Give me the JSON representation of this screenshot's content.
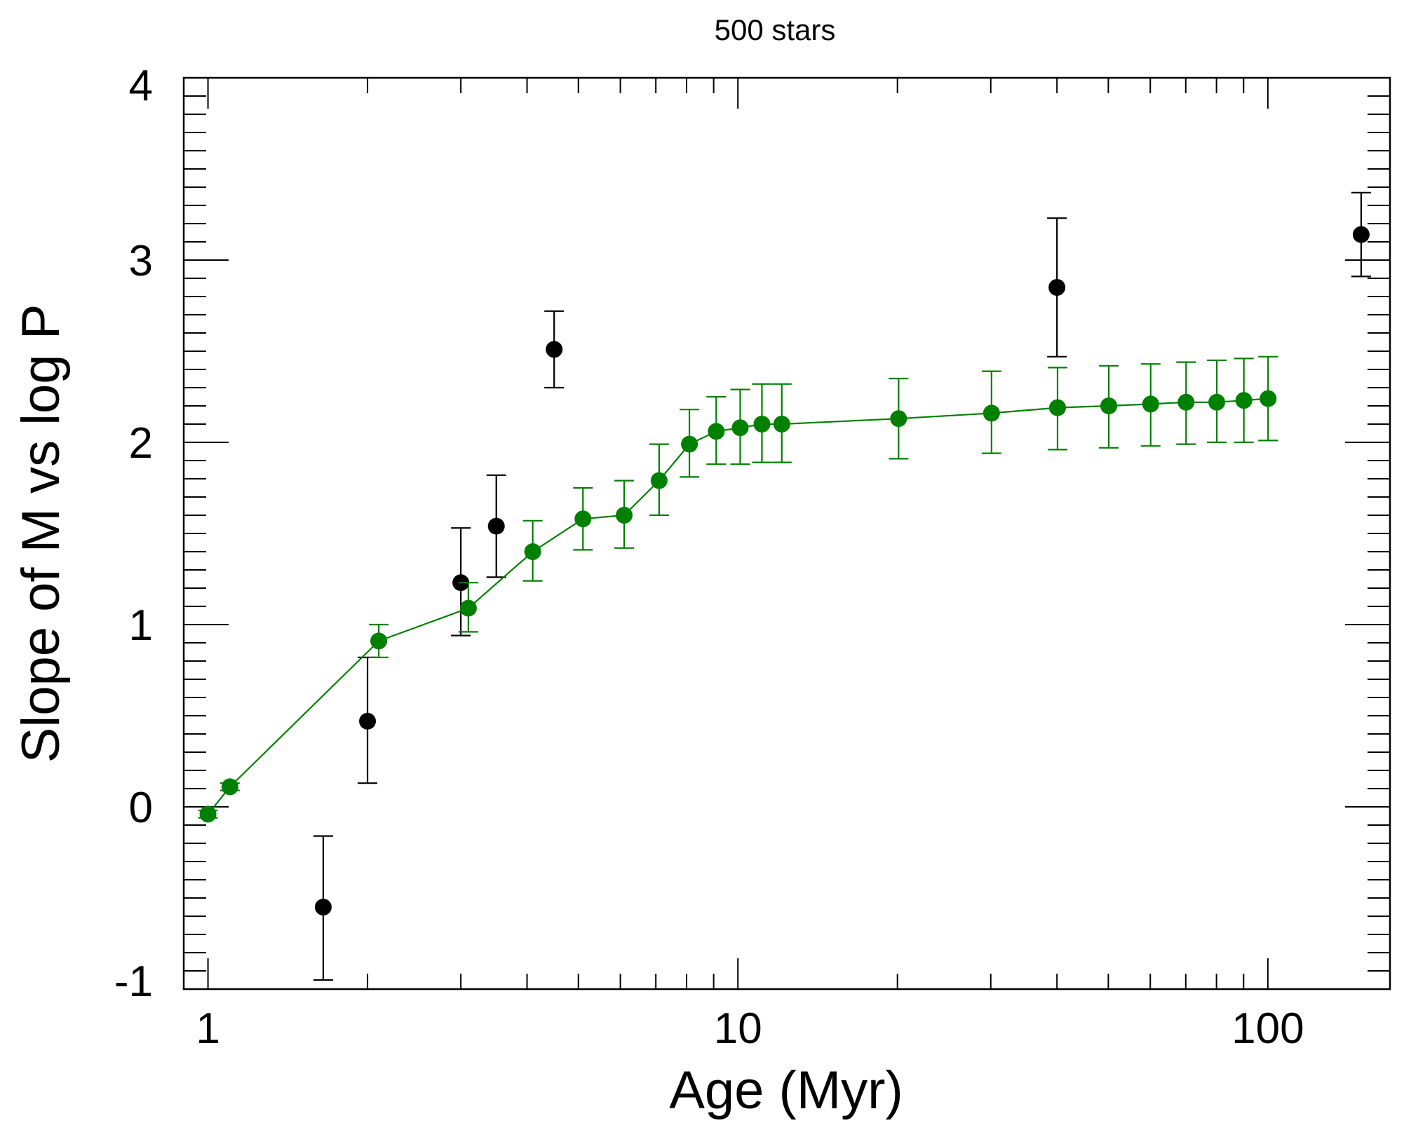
{
  "chart_data": {
    "type": "scatter",
    "title": "500 stars",
    "xlabel": "Age (Myr)",
    "ylabel": "Slope of M vs log P",
    "xscale": "log",
    "xlim": [
      0.9,
      170
    ],
    "ylim": [
      -1,
      4
    ],
    "grid": false,
    "x_tick_labels": [
      "1",
      "10",
      "100"
    ],
    "x_tick_values": [
      1,
      10,
      100
    ],
    "y_tick_labels": [
      "-1",
      "0",
      "1",
      "2",
      "3",
      "4"
    ],
    "y_tick_values": [
      -1,
      0,
      1,
      2,
      3,
      4
    ],
    "colors": {
      "observed": "#000000",
      "model": "#008000"
    },
    "series": [
      {
        "name": "observed",
        "style": "points",
        "points": [
          {
            "x": 1.65,
            "y": -0.55,
            "lo": -0.95,
            "hi": -0.16
          },
          {
            "x": 2.0,
            "y": 0.47,
            "lo": 0.13,
            "hi": 0.82
          },
          {
            "x": 3.0,
            "y": 1.23,
            "lo": 0.94,
            "hi": 1.53
          },
          {
            "x": 3.5,
            "y": 1.54,
            "lo": 1.26,
            "hi": 1.82
          },
          {
            "x": 4.5,
            "y": 2.51,
            "lo": 2.3,
            "hi": 2.72
          },
          {
            "x": 40,
            "y": 2.85,
            "lo": 2.47,
            "hi": 3.23
          },
          {
            "x": 150,
            "y": 3.14,
            "lo": 2.91,
            "hi": 3.37
          }
        ]
      },
      {
        "name": "model",
        "style": "line+points",
        "points": [
          {
            "x": 1.0,
            "y": -0.04,
            "lo": -0.06,
            "hi": -0.02
          },
          {
            "x": 1.1,
            "y": 0.11,
            "lo": 0.09,
            "hi": 0.13
          },
          {
            "x": 2.1,
            "y": 0.91,
            "lo": 0.82,
            "hi": 1.0
          },
          {
            "x": 3.1,
            "y": 1.09,
            "lo": 0.96,
            "hi": 1.23
          },
          {
            "x": 4.1,
            "y": 1.4,
            "lo": 1.24,
            "hi": 1.57
          },
          {
            "x": 5.1,
            "y": 1.58,
            "lo": 1.41,
            "hi": 1.75
          },
          {
            "x": 6.1,
            "y": 1.6,
            "lo": 1.42,
            "hi": 1.79
          },
          {
            "x": 7.1,
            "y": 1.79,
            "lo": 1.6,
            "hi": 1.99
          },
          {
            "x": 8.1,
            "y": 1.99,
            "lo": 1.81,
            "hi": 2.18
          },
          {
            "x": 9.1,
            "y": 2.06,
            "lo": 1.88,
            "hi": 2.25
          },
          {
            "x": 10.1,
            "y": 2.08,
            "lo": 1.88,
            "hi": 2.29
          },
          {
            "x": 11.1,
            "y": 2.1,
            "lo": 1.89,
            "hi": 2.32
          },
          {
            "x": 12.1,
            "y": 2.1,
            "lo": 1.89,
            "hi": 2.32
          },
          {
            "x": 20.1,
            "y": 2.13,
            "lo": 1.91,
            "hi": 2.35
          },
          {
            "x": 30.1,
            "y": 2.16,
            "lo": 1.94,
            "hi": 2.39
          },
          {
            "x": 40.1,
            "y": 2.19,
            "lo": 1.96,
            "hi": 2.41
          },
          {
            "x": 50.1,
            "y": 2.2,
            "lo": 1.97,
            "hi": 2.42
          },
          {
            "x": 60.1,
            "y": 2.21,
            "lo": 1.98,
            "hi": 2.43
          },
          {
            "x": 70.1,
            "y": 2.22,
            "lo": 1.99,
            "hi": 2.44
          },
          {
            "x": 80.1,
            "y": 2.22,
            "lo": 2.0,
            "hi": 2.45
          },
          {
            "x": 90.1,
            "y": 2.23,
            "lo": 2.0,
            "hi": 2.46
          },
          {
            "x": 100.1,
            "y": 2.24,
            "lo": 2.01,
            "hi": 2.47
          }
        ]
      }
    ]
  }
}
